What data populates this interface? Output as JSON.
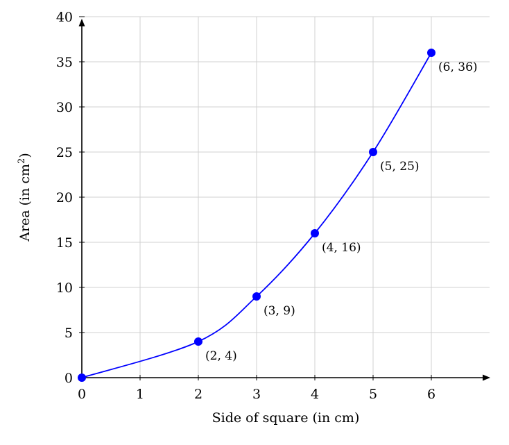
{
  "chart_data": {
    "type": "line",
    "title": "",
    "xlabel": "Side of square (in cm)",
    "ylabel": "Area (in cm²)",
    "ylabel_parts": {
      "text": "Area (in cm",
      "sup": "2",
      "close": ")"
    },
    "x": [
      0,
      2,
      3,
      4,
      5,
      6
    ],
    "values": [
      0,
      4,
      9,
      16,
      25,
      36
    ],
    "series": [
      {
        "name": "Area",
        "color": "#0000ff",
        "x": [
          0,
          2,
          3,
          4,
          5,
          6
        ],
        "values": [
          0,
          4,
          9,
          16,
          25,
          36
        ]
      }
    ],
    "point_labels": [
      "",
      "(2, 4)",
      "(3, 9)",
      "(4, 16)",
      "(5, 25)",
      "(6, 36)"
    ],
    "xticks": [
      "0",
      "1",
      "2",
      "3",
      "4",
      "5",
      "6"
    ],
    "yticks": [
      "0",
      "5",
      "10",
      "15",
      "20",
      "25",
      "30",
      "35",
      "40"
    ],
    "xlim": [
      0,
      7
    ],
    "ylim": [
      0,
      40
    ],
    "grid": true,
    "smooth": true,
    "legend": null
  },
  "colors": {
    "line": "#0000ff",
    "marker": "#0000ff",
    "grid": "#d0d0d0",
    "axis": "#000000"
  }
}
